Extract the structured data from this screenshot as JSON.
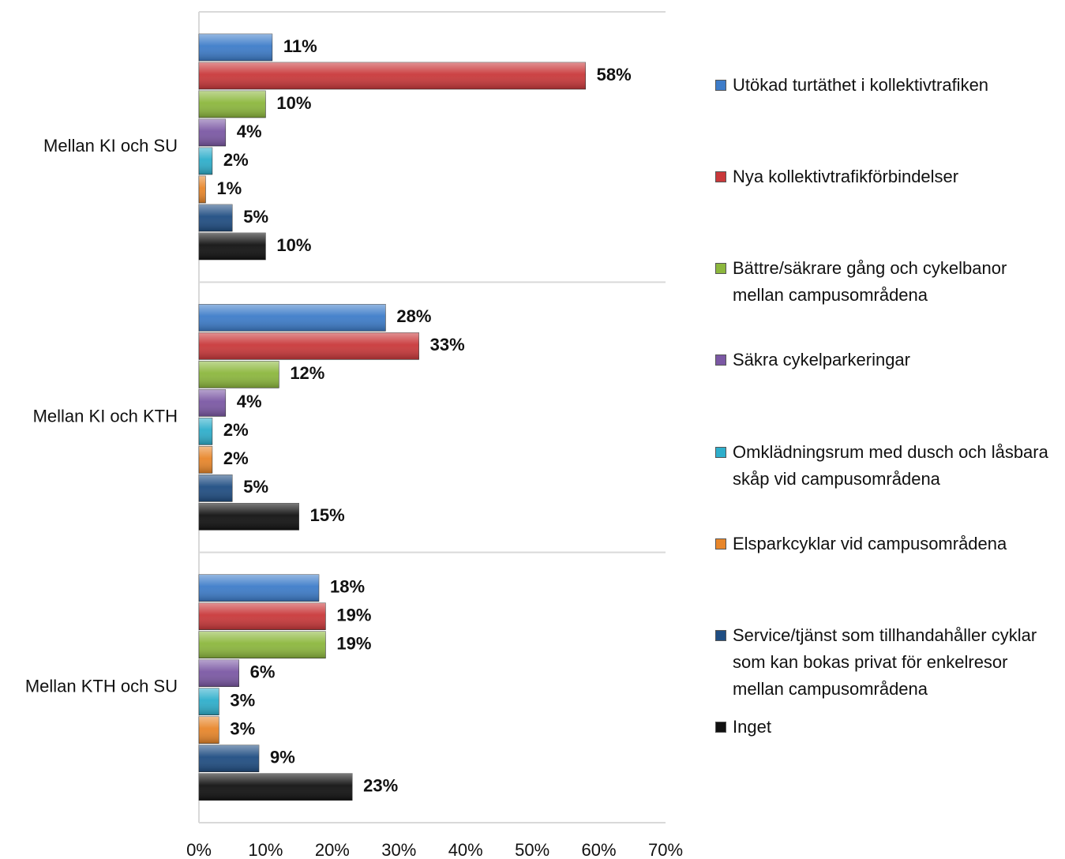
{
  "chart_data": {
    "type": "barh",
    "categories": [
      "Mellan KI och SU",
      "Mellan KI och KTH",
      "Mellan KTH och SU"
    ],
    "series": [
      {
        "name": "Utökad turtäthet i kollektivtrafiken",
        "color": "#3d7cc9",
        "values": [
          11,
          28,
          18
        ],
        "value_labels": [
          "11%",
          "28%",
          "18%"
        ]
      },
      {
        "name": "Nya kollektivtrafikförbindelser",
        "color": "#c9383a",
        "values": [
          58,
          33,
          19
        ],
        "value_labels": [
          "58%",
          "33%",
          "19%"
        ]
      },
      {
        "name": "Bättre/säkrare gång och cykelbanor mellan campusområdena",
        "color": "#8cb73d",
        "values": [
          10,
          12,
          19
        ],
        "value_labels": [
          "10%",
          "12%",
          "19%"
        ]
      },
      {
        "name": "Säkra cykelparkeringar",
        "color": "#7b58a4",
        "values": [
          4,
          4,
          6
        ],
        "value_labels": [
          "4%",
          "4%",
          "6%"
        ]
      },
      {
        "name": "Omklädningsrum med dusch och låsbara skåp vid campusområdena",
        "color": "#2eaecb",
        "values": [
          2,
          2,
          3
        ],
        "value_labels": [
          "2%",
          "2%",
          "3%"
        ]
      },
      {
        "name": "Elsparkcyklar vid campusområdena",
        "color": "#e8862a",
        "values": [
          1,
          2,
          3
        ],
        "value_labels": [
          "1%",
          "2%",
          "3%"
        ]
      },
      {
        "name": "Service/tjänst som tillhandahåller cyklar som kan bokas privat för enkelresor mellan campusområdena",
        "color": "#1f4d82",
        "values": [
          5,
          5,
          9
        ],
        "value_labels": [
          "5%",
          "5%",
          "9%"
        ]
      },
      {
        "name": "Inget",
        "color": "#111111",
        "values": [
          10,
          15,
          23
        ],
        "value_labels": [
          "10%",
          "15%",
          "23%"
        ]
      }
    ],
    "xlim": [
      0,
      70
    ],
    "xticks": [
      {
        "value": 0,
        "label": "0%"
      },
      {
        "value": 10,
        "label": "10%"
      },
      {
        "value": 20,
        "label": "20%"
      },
      {
        "value": 30,
        "label": "30%"
      },
      {
        "value": 40,
        "label": "40%"
      },
      {
        "value": 50,
        "label": "50%"
      },
      {
        "value": 60,
        "label": "60%"
      },
      {
        "value": 70,
        "label": "70%"
      }
    ],
    "legend": "right"
  }
}
